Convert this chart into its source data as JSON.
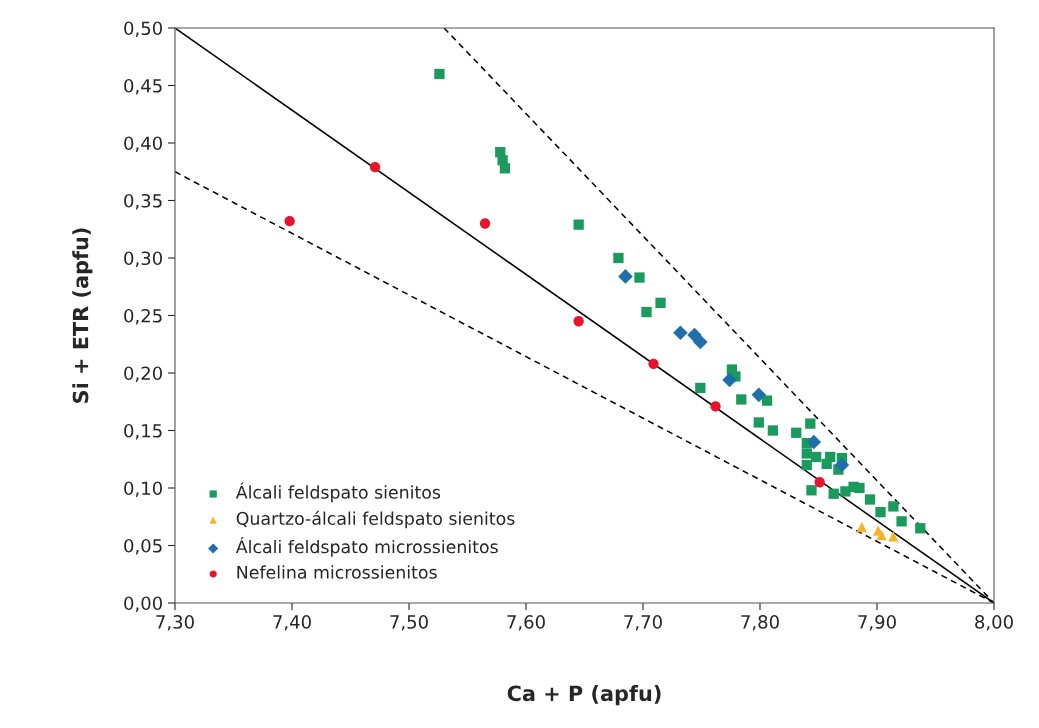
{
  "chart_data": {
    "type": "scatter",
    "xlabel": "Ca + P (apfu)",
    "ylabel": "Si + ETR (apfu)",
    "xlim": [
      7.3,
      8.0
    ],
    "ylim": [
      0,
      0.5
    ],
    "xticks": [
      {
        "value": 7.3,
        "label": "7,30"
      },
      {
        "value": 7.4,
        "label": "7,40"
      },
      {
        "value": 7.5,
        "label": "7,50"
      },
      {
        "value": 7.6,
        "label": "7,60"
      },
      {
        "value": 7.7,
        "label": "7,70"
      },
      {
        "value": 7.8,
        "label": "7,80"
      },
      {
        "value": 7.9,
        "label": "7,90"
      },
      {
        "value": 8.0,
        "label": "8,00"
      }
    ],
    "yticks": [
      {
        "value": 0,
        "label": "0,00"
      },
      {
        "value": 0.05,
        "label": "0,05"
      },
      {
        "value": 0.1,
        "label": "0,10"
      },
      {
        "value": 0.15,
        "label": "0,15"
      },
      {
        "value": 0.2,
        "label": "0,20"
      },
      {
        "value": 0.25,
        "label": "0,25"
      },
      {
        "value": 0.3,
        "label": "0,30"
      },
      {
        "value": 0.35,
        "label": "0,35"
      },
      {
        "value": 0.4,
        "label": "0,40"
      },
      {
        "value": 0.45,
        "label": "0,45"
      },
      {
        "value": 0.5,
        "label": "0,50"
      }
    ],
    "grid": false,
    "legend": "bottom left",
    "series": [
      {
        "type": "line",
        "color": "#000000",
        "line_style": "solid",
        "marker": "none",
        "x": [
          7.3,
          8.0
        ],
        "values": [
          0.5,
          0
        ]
      },
      {
        "type": "line",
        "color": "#000000",
        "line_style": "dashed",
        "marker": "none",
        "x": [
          7.3,
          8.0
        ],
        "values": [
          0.375,
          0
        ]
      },
      {
        "type": "line",
        "color": "#000000",
        "line_style": "dashed",
        "marker": "none",
        "x": [
          7.53,
          8.0
        ],
        "values": [
          0.5,
          0
        ]
      },
      {
        "name": "Álcali feldspato sienitos",
        "marker": "square",
        "color": "#1a9a5c",
        "x": [
          7.526,
          7.578,
          7.58,
          7.582,
          7.645,
          7.679,
          7.697,
          7.715,
          7.703,
          7.776,
          7.779,
          7.749,
          7.784,
          7.806,
          7.799,
          7.811,
          7.843,
          7.831,
          7.84,
          7.84,
          7.848,
          7.86,
          7.87,
          7.84,
          7.857,
          7.867,
          7.844,
          7.863,
          7.873,
          7.88,
          7.885,
          7.894,
          7.903,
          7.914,
          7.921,
          7.937
        ],
        "values": [
          0.46,
          0.392,
          0.385,
          0.378,
          0.329,
          0.3,
          0.283,
          0.261,
          0.253,
          0.203,
          0.197,
          0.187,
          0.177,
          0.176,
          0.157,
          0.15,
          0.156,
          0.148,
          0.139,
          0.13,
          0.127,
          0.127,
          0.126,
          0.12,
          0.121,
          0.116,
          0.098,
          0.095,
          0.097,
          0.101,
          0.1,
          0.09,
          0.079,
          0.084,
          0.071,
          0.065
        ]
      },
      {
        "name": "Quartzo-álcali feldspato sienitos",
        "marker": "triangle",
        "color": "#f5b32c",
        "x": [
          7.887,
          7.901,
          7.904,
          7.914
        ],
        "values": [
          0.066,
          0.063,
          0.059,
          0.058
        ]
      },
      {
        "name": "Álcali feldspato microssienitos",
        "marker": "diamond",
        "color": "#1f6fa8",
        "x": [
          7.685,
          7.732,
          7.744,
          7.749,
          7.774,
          7.799,
          7.846,
          7.87
        ],
        "values": [
          0.284,
          0.235,
          0.233,
          0.227,
          0.194,
          0.181,
          0.14,
          0.12
        ]
      },
      {
        "name": "Nefelina microssienitos",
        "marker": "circle",
        "color": "#e8142c",
        "x": [
          7.398,
          7.471,
          7.565,
          7.645,
          7.709,
          7.762,
          7.851
        ],
        "values": [
          0.332,
          0.379,
          0.33,
          0.245,
          0.208,
          0.171,
          0.105
        ]
      }
    ]
  }
}
